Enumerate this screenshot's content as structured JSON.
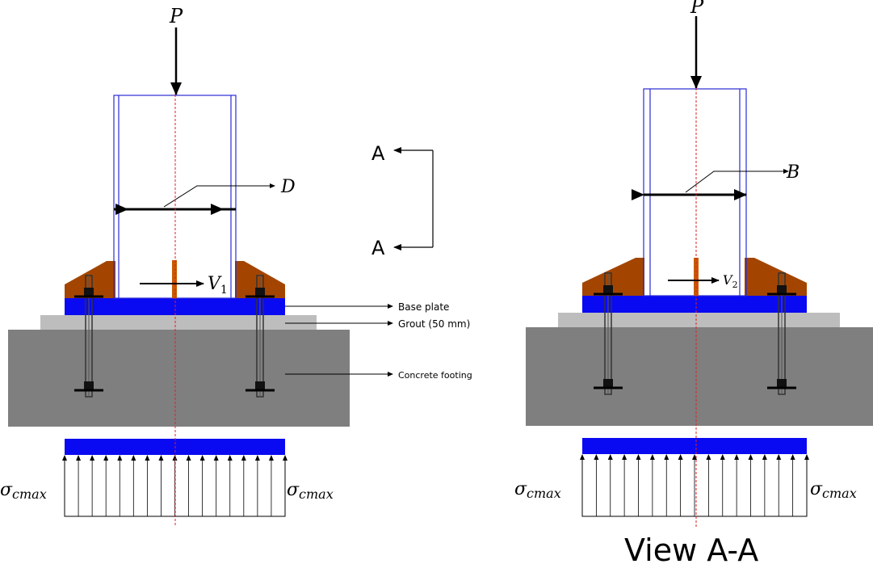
{
  "colors": {
    "column": "#2b2bd6",
    "base_plate": "#0a0af2",
    "grout": "#bdbdbd",
    "concrete": "#7f7f7f",
    "gusset": "#a34500",
    "shear_key": "#c85a00",
    "centerline": "#e02020",
    "ink": "#000000"
  },
  "left_view": {
    "load_label": "P",
    "dimension_label": "D",
    "shear_label": "V",
    "shear_subscript": "1",
    "base_plate_label": "Base plate",
    "grout_label": "Grout (50 mm)",
    "concrete_label": "Concrete footing",
    "stress_left": "σ",
    "stress_left_sub": "cmax",
    "stress_right": "σ",
    "stress_right_sub": "cmax"
  },
  "section_marker": {
    "top": "A",
    "bottom": "A"
  },
  "right_view": {
    "load_label": "P",
    "dimension_label": "B",
    "shear_label": "V",
    "shear_subscript": "2",
    "stress_left": "σ",
    "stress_left_sub": "cmax",
    "stress_right": "σ",
    "stress_right_sub": "cmax",
    "caption": "View A-A"
  }
}
